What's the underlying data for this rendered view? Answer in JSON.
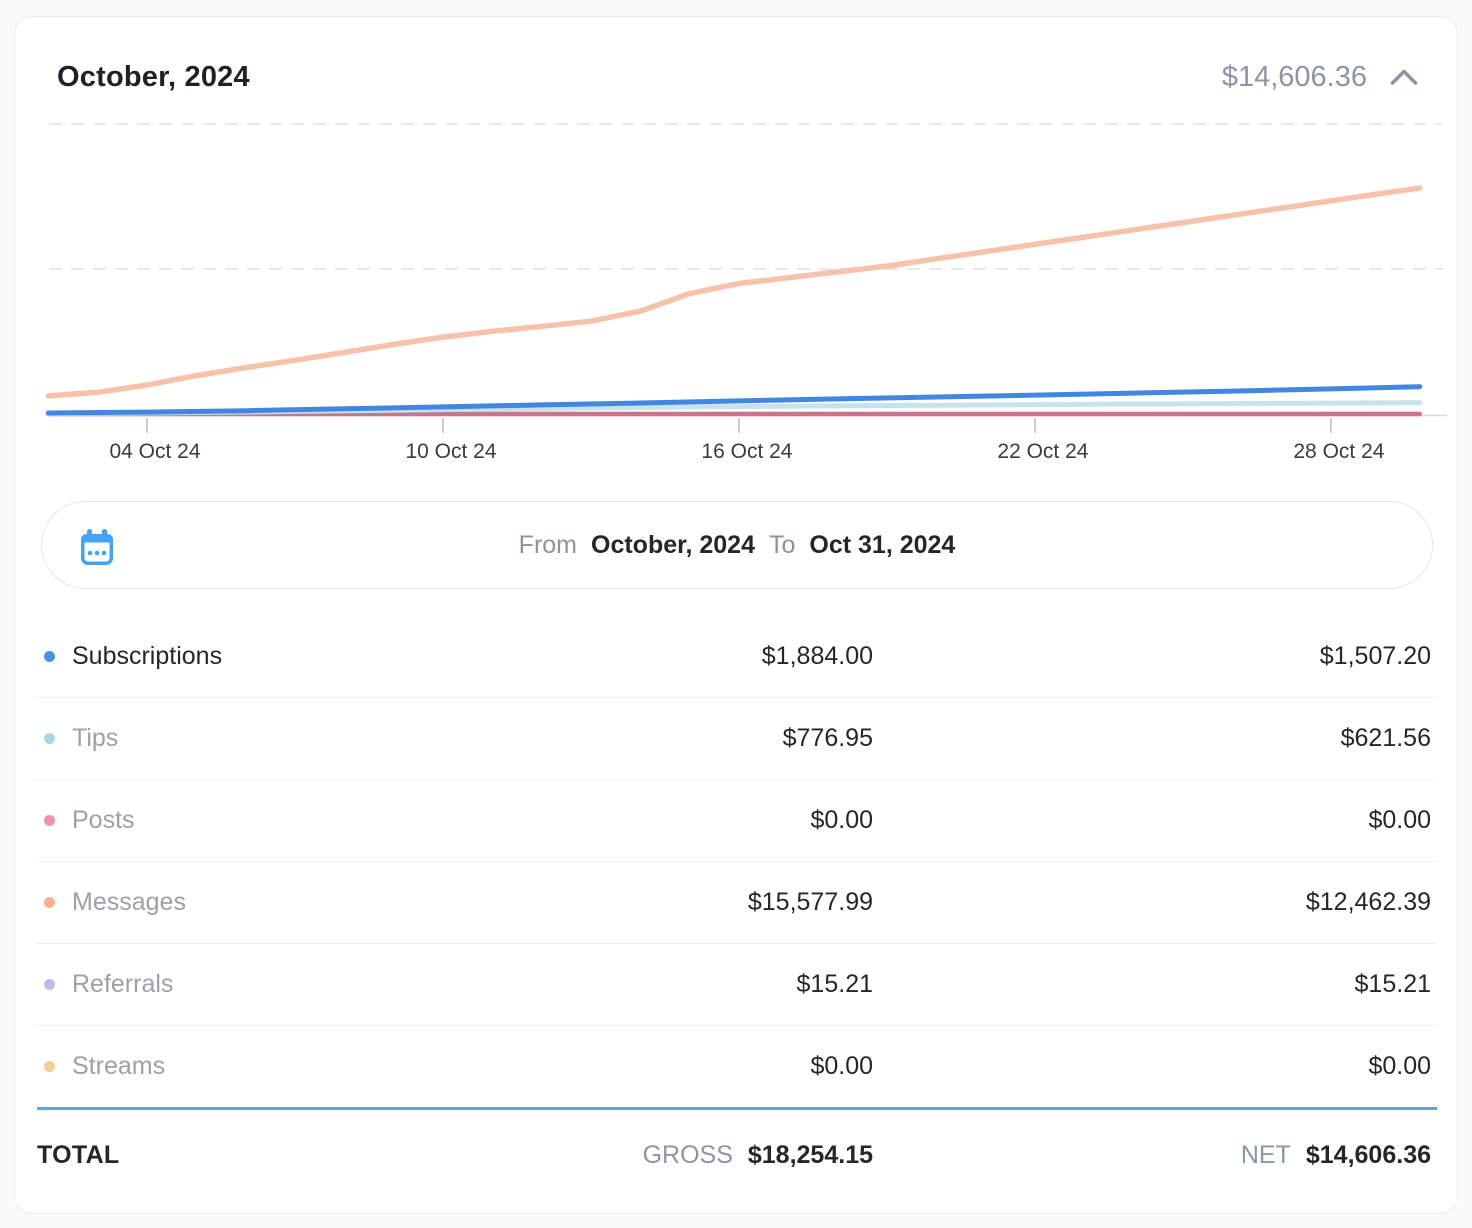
{
  "header": {
    "title": "October, 2024",
    "amount": "$14,606.36"
  },
  "chart_data": {
    "type": "line",
    "title": "October, 2024 cumulative earnings (USD, gross)",
    "xlabel": "",
    "ylabel": "",
    "x_tick_labels": [
      "04 Oct 24",
      "10 Oct 24",
      "16 Oct 24",
      "22 Oct 24",
      "28 Oct 24"
    ],
    "x_tick_days": [
      4,
      10,
      16,
      22,
      28
    ],
    "x_range_days": [
      2,
      29.8
    ],
    "ylim": [
      0,
      22000
    ],
    "gridline_values": [
      10000,
      20000
    ],
    "grid_style": "dashed",
    "legend_position": "below-table",
    "series": [
      {
        "name": "Streams",
        "color": "#f5cd95",
        "width": 4,
        "points": [
          [
            2,
            0
          ],
          [
            29.8,
            0
          ]
        ]
      },
      {
        "name": "Referrals",
        "color": "#c8b7ea",
        "width": 4,
        "points": [
          [
            2,
            2
          ],
          [
            29.8,
            15.21
          ]
        ]
      },
      {
        "name": "Posts",
        "color": "#ca7389",
        "width": 4.5,
        "points": [
          [
            2,
            0
          ],
          [
            29.8,
            0
          ]
        ]
      },
      {
        "name": "Tips",
        "color": "#c6e2ec",
        "width": 5,
        "points": [
          [
            2,
            30
          ],
          [
            4,
            70
          ],
          [
            6,
            140
          ],
          [
            8,
            220
          ],
          [
            10,
            300
          ],
          [
            12,
            380
          ],
          [
            14,
            450
          ],
          [
            16,
            510
          ],
          [
            18,
            560
          ],
          [
            20,
            610
          ],
          [
            22,
            650
          ],
          [
            24,
            690
          ],
          [
            26,
            720
          ],
          [
            28,
            750
          ],
          [
            29.8,
            776.95
          ]
        ]
      },
      {
        "name": "Subscriptions",
        "color": "#4187e2",
        "width": 5,
        "points": [
          [
            2,
            70
          ],
          [
            4,
            130
          ],
          [
            6,
            230
          ],
          [
            8,
            360
          ],
          [
            10,
            490
          ],
          [
            12,
            630
          ],
          [
            14,
            760
          ],
          [
            16,
            900
          ],
          [
            18,
            1040
          ],
          [
            20,
            1170
          ],
          [
            22,
            1300
          ],
          [
            24,
            1440
          ],
          [
            26,
            1580
          ],
          [
            28,
            1730
          ],
          [
            29.8,
            1884
          ]
        ]
      },
      {
        "name": "Messages",
        "color": "#f6c2ac",
        "width": 5.5,
        "points": [
          [
            2,
            1250
          ],
          [
            3,
            1500
          ],
          [
            4,
            2000
          ],
          [
            5,
            2650
          ],
          [
            6,
            3200
          ],
          [
            7,
            3700
          ],
          [
            8,
            4250
          ],
          [
            9,
            4800
          ],
          [
            10,
            5300
          ],
          [
            11,
            5700
          ],
          [
            12,
            6050
          ],
          [
            13,
            6400
          ],
          [
            14,
            7100
          ],
          [
            15,
            8300
          ],
          [
            16,
            9000
          ],
          [
            17,
            9400
          ],
          [
            18,
            9800
          ],
          [
            19,
            10200
          ],
          [
            20,
            10700
          ],
          [
            21,
            11200
          ],
          [
            22,
            11700
          ],
          [
            23,
            12200
          ],
          [
            24,
            12700
          ],
          [
            25,
            13200
          ],
          [
            26,
            13700
          ],
          [
            27,
            14200
          ],
          [
            28,
            14700
          ],
          [
            29,
            15200
          ],
          [
            29.8,
            15577.99
          ]
        ]
      }
    ]
  },
  "date_range": {
    "from_label": "From",
    "from_value": "October, 2024",
    "to_label": "To",
    "to_value": "Oct 31, 2024"
  },
  "rows": [
    {
      "label": "Subscriptions",
      "dot_color": "#4a8fe8",
      "gross": "$1,884.00",
      "net": "$1,507.20",
      "active": true
    },
    {
      "label": "Tips",
      "dot_color": "#a9d7e6",
      "gross": "$776.95",
      "net": "$621.56",
      "active": false
    },
    {
      "label": "Posts",
      "dot_color": "#ef93ae",
      "gross": "$0.00",
      "net": "$0.00",
      "active": false
    },
    {
      "label": "Messages",
      "dot_color": "#f4b097",
      "gross": "$15,577.99",
      "net": "$12,462.39",
      "active": false
    },
    {
      "label": "Referrals",
      "dot_color": "#c8b7ea",
      "gross": "$15.21",
      "net": "$15.21",
      "active": false
    },
    {
      "label": "Streams",
      "dot_color": "#f5cd95",
      "gross": "$0.00",
      "net": "$0.00",
      "active": false
    }
  ],
  "total": {
    "label": "TOTAL",
    "gross_label": "GROSS",
    "gross_value": "$18,254.15",
    "net_label": "NET",
    "net_value": "$14,606.36"
  },
  "colors": {
    "accent_blue": "#58a7e0",
    "calendar_icon": "#42a4f5",
    "muted_text": "#8b95a5",
    "gridline": "#e8e8ea"
  }
}
